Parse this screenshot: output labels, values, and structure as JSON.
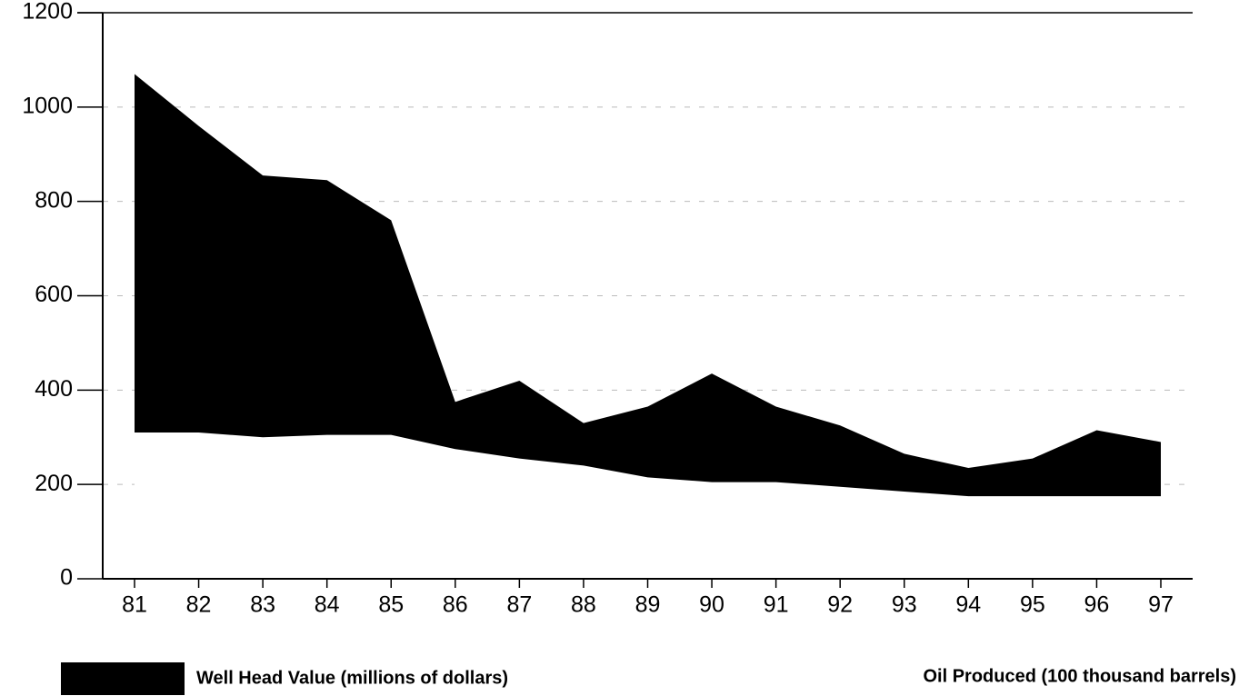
{
  "chart_data": {
    "type": "area",
    "categories": [
      "81",
      "82",
      "83",
      "84",
      "85",
      "86",
      "87",
      "88",
      "89",
      "90",
      "91",
      "92",
      "93",
      "94",
      "95",
      "96",
      "97"
    ],
    "series": [
      {
        "name": "Well Head Value (millions of dollars)",
        "color": "#000000",
        "values": [
          1070,
          960,
          855,
          845,
          760,
          375,
          420,
          330,
          365,
          435,
          365,
          325,
          265,
          235,
          255,
          315,
          290
        ]
      },
      {
        "name": "Oil Produced (100 thousand barrels)",
        "color": "#ffffff",
        "values": [
          310,
          310,
          300,
          305,
          305,
          275,
          255,
          240,
          215,
          205,
          205,
          195,
          185,
          175,
          175,
          175,
          175
        ]
      }
    ],
    "ylim": [
      0,
      1200
    ],
    "yticks": [
      0,
      200,
      400,
      600,
      800,
      1000,
      1200
    ],
    "grid": true
  }
}
